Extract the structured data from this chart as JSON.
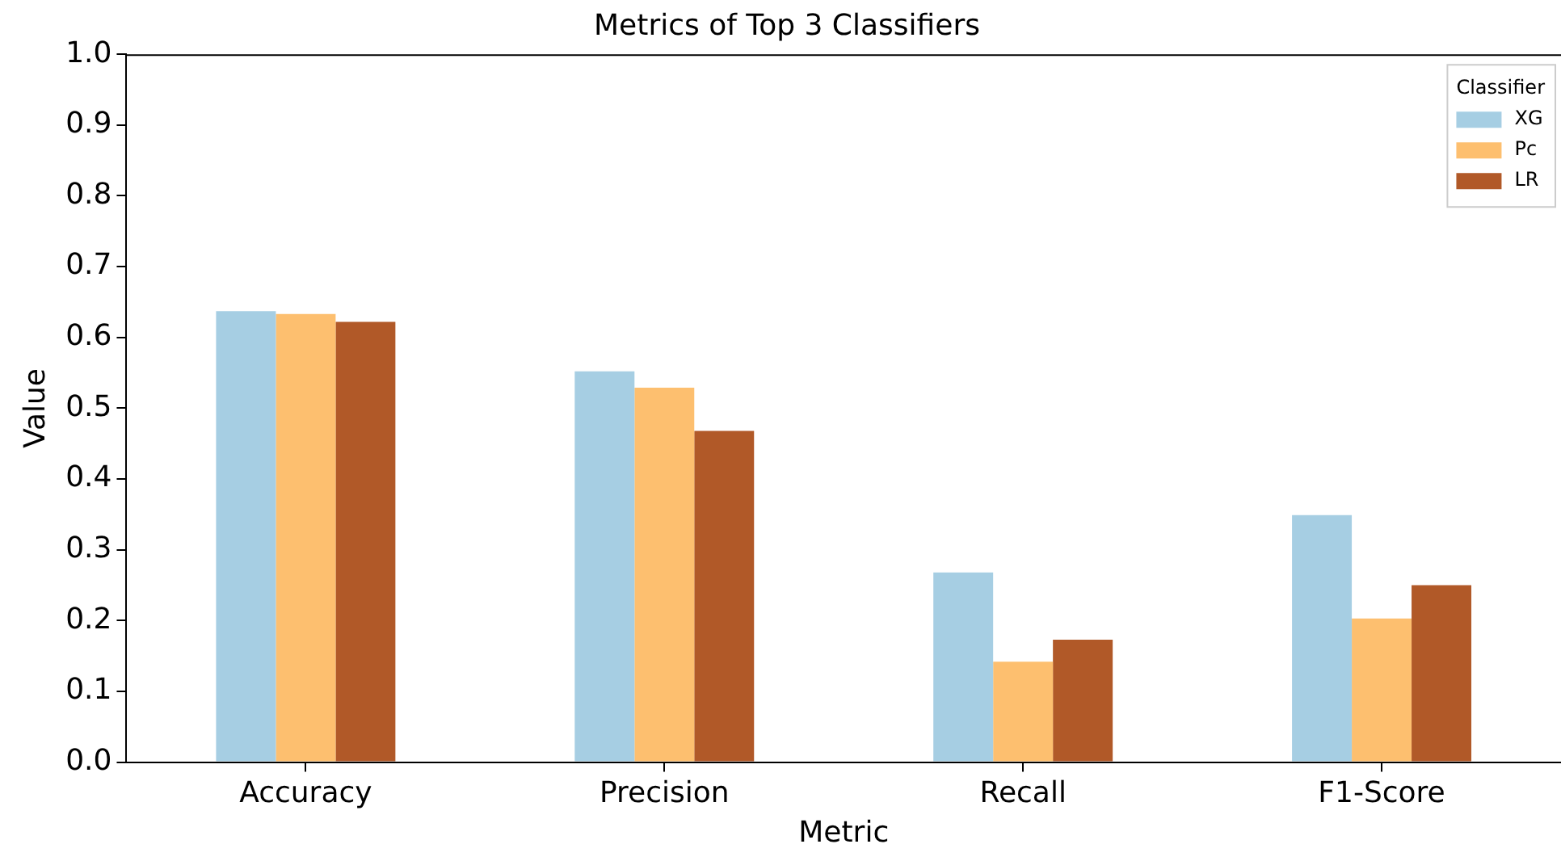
{
  "chart_data": {
    "type": "bar",
    "title": "Metrics of Top 3 Classifiers",
    "xlabel": "Metric",
    "ylabel": "Value",
    "legend_title": "Classifier",
    "categories": [
      "Accuracy",
      "Precision",
      "Recall",
      "F1-Score"
    ],
    "series": [
      {
        "name": "XG",
        "color": "#a6cee3",
        "values": [
          0.637,
          0.552,
          0.268,
          0.349
        ]
      },
      {
        "name": "Pc",
        "color": "#fdbf6f",
        "values": [
          0.633,
          0.529,
          0.142,
          0.203
        ]
      },
      {
        "name": "LR",
        "color": "#b15928",
        "values": [
          0.622,
          0.468,
          0.173,
          0.25
        ]
      }
    ],
    "ylim": [
      0,
      1
    ],
    "yticks": [
      {
        "value": 0,
        "label": "0.0"
      },
      0.1,
      0.2,
      0.3,
      0.4,
      0.5,
      0.6,
      0.7,
      0.8,
      0.9,
      {
        "value": 1,
        "label": "1.0"
      }
    ],
    "grid": false,
    "legend": "top right"
  }
}
